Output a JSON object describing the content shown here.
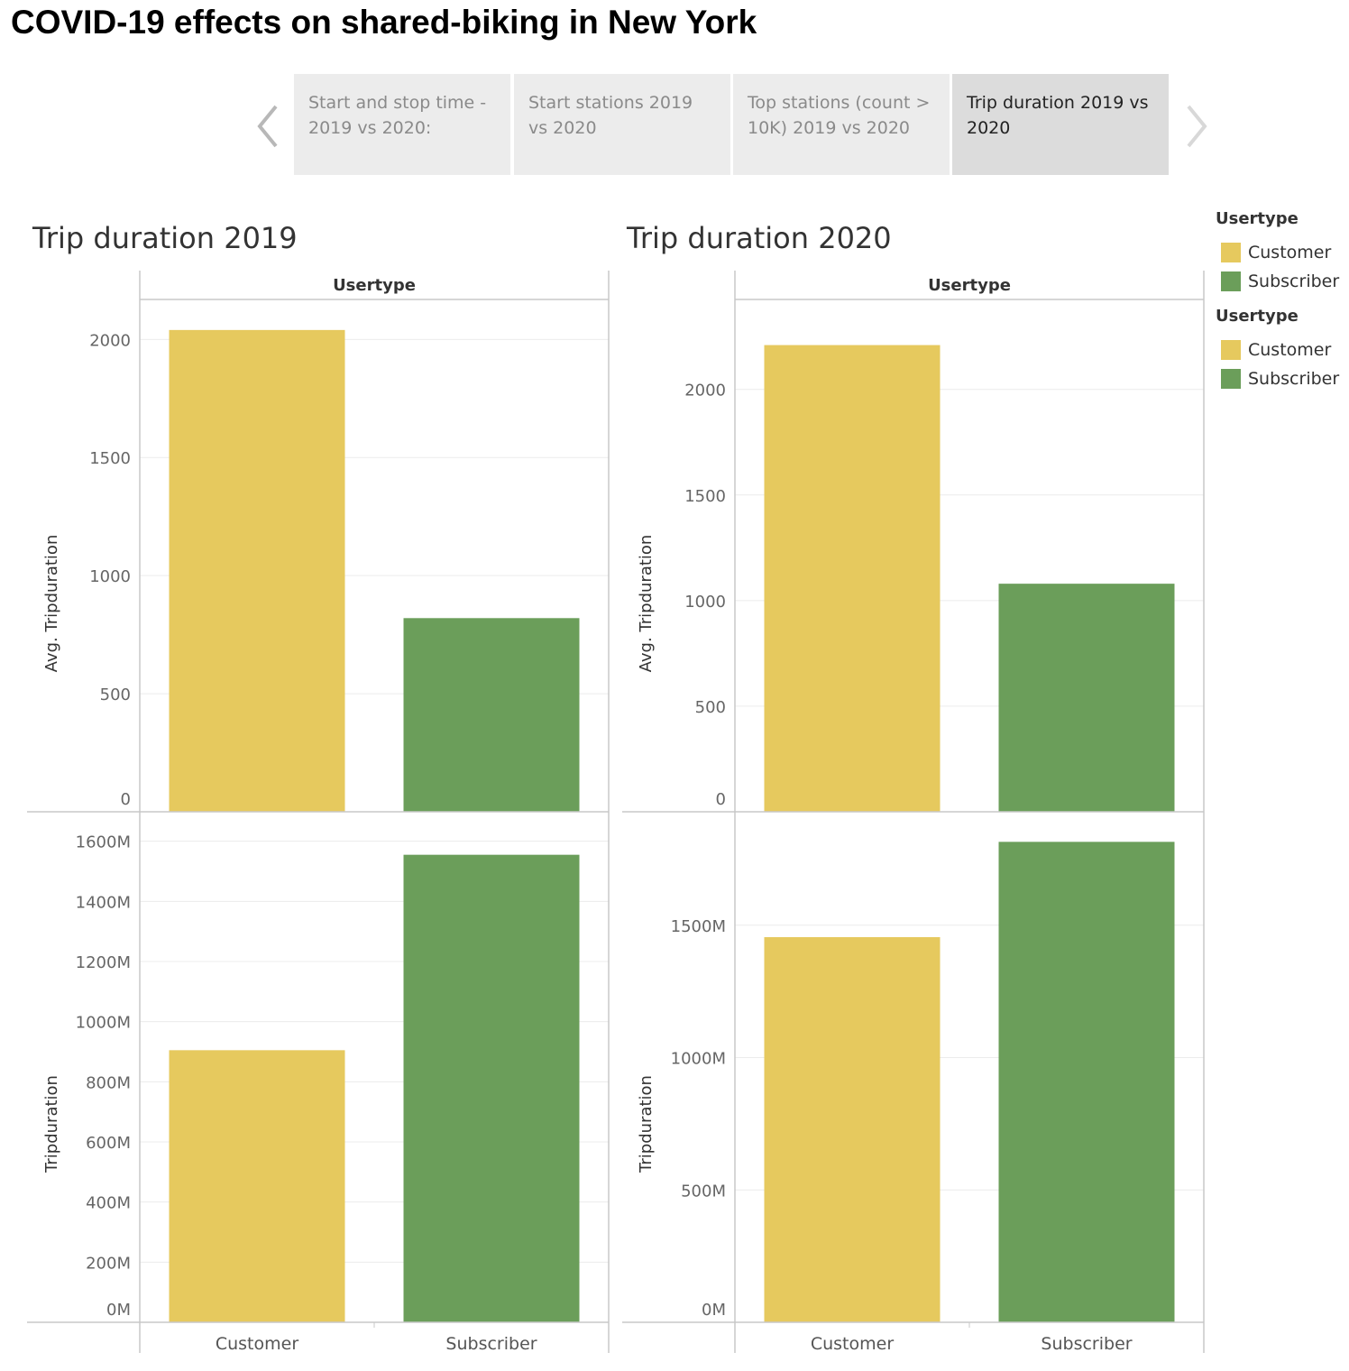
{
  "title": "COVID-19 effects on shared-biking in New York",
  "story": {
    "tabs": [
      {
        "label": "Start and stop time - 2019 vs 2020:",
        "active": false
      },
      {
        "label": "Start stations 2019 vs 2020",
        "active": false
      },
      {
        "label": "Top stations (count > 10K) 2019 vs 2020",
        "active": false
      },
      {
        "label": "Trip duration 2019 vs 2020",
        "active": true
      }
    ],
    "prev_icon": "chevron-left-icon",
    "next_icon": "chevron-right-icon"
  },
  "colors": {
    "Customer": "#e6c95e",
    "Subscriber": "#6b9e5a",
    "grid": "#ececec",
    "axis": "#c8c8c8"
  },
  "legends": [
    {
      "title": "Usertype",
      "items": [
        "Customer",
        "Subscriber"
      ]
    },
    {
      "title": "Usertype",
      "items": [
        "Customer",
        "Subscriber"
      ]
    }
  ],
  "chart_data": [
    {
      "type": "bar",
      "title": "Trip duration 2019",
      "column_header": "Usertype",
      "categories": [
        "Customer",
        "Subscriber"
      ],
      "panels": [
        {
          "ylabel": "Avg. Tripduration",
          "values": [
            2040,
            820
          ],
          "ylim": [
            0,
            2070
          ],
          "ticks": [
            0,
            500,
            1000,
            1500,
            2000
          ],
          "tick_labels": [
            "0",
            "500",
            "1000",
            "1500",
            "2000"
          ]
        },
        {
          "ylabel": "Tripduration",
          "values": [
            905,
            1555
          ],
          "ylim": [
            0,
            1620
          ],
          "ticks": [
            0,
            200,
            400,
            600,
            800,
            1000,
            1200,
            1400,
            1600
          ],
          "tick_labels": [
            "0M",
            "200M",
            "400M",
            "600M",
            "800M",
            "1000M",
            "1200M",
            "1400M",
            "1600M"
          ]
        }
      ],
      "grid": true
    },
    {
      "type": "bar",
      "title": "Trip duration 2020",
      "column_header": "Usertype",
      "categories": [
        "Customer",
        "Subscriber"
      ],
      "panels": [
        {
          "ylabel": "Avg. Tripduration",
          "values": [
            2210,
            1080
          ],
          "ylim": [
            0,
            2315
          ],
          "ticks": [
            0,
            500,
            1000,
            1500,
            2000
          ],
          "tick_labels": [
            "0",
            "500",
            "1000",
            "1500",
            "2000"
          ]
        },
        {
          "ylabel": "Tripduration",
          "values": [
            1455,
            1815
          ],
          "ylim": [
            0,
            1840
          ],
          "ticks": [
            0,
            500,
            1000,
            1500
          ],
          "tick_labels": [
            "0M",
            "500M",
            "1000M",
            "1500M"
          ]
        }
      ],
      "grid": true
    }
  ]
}
